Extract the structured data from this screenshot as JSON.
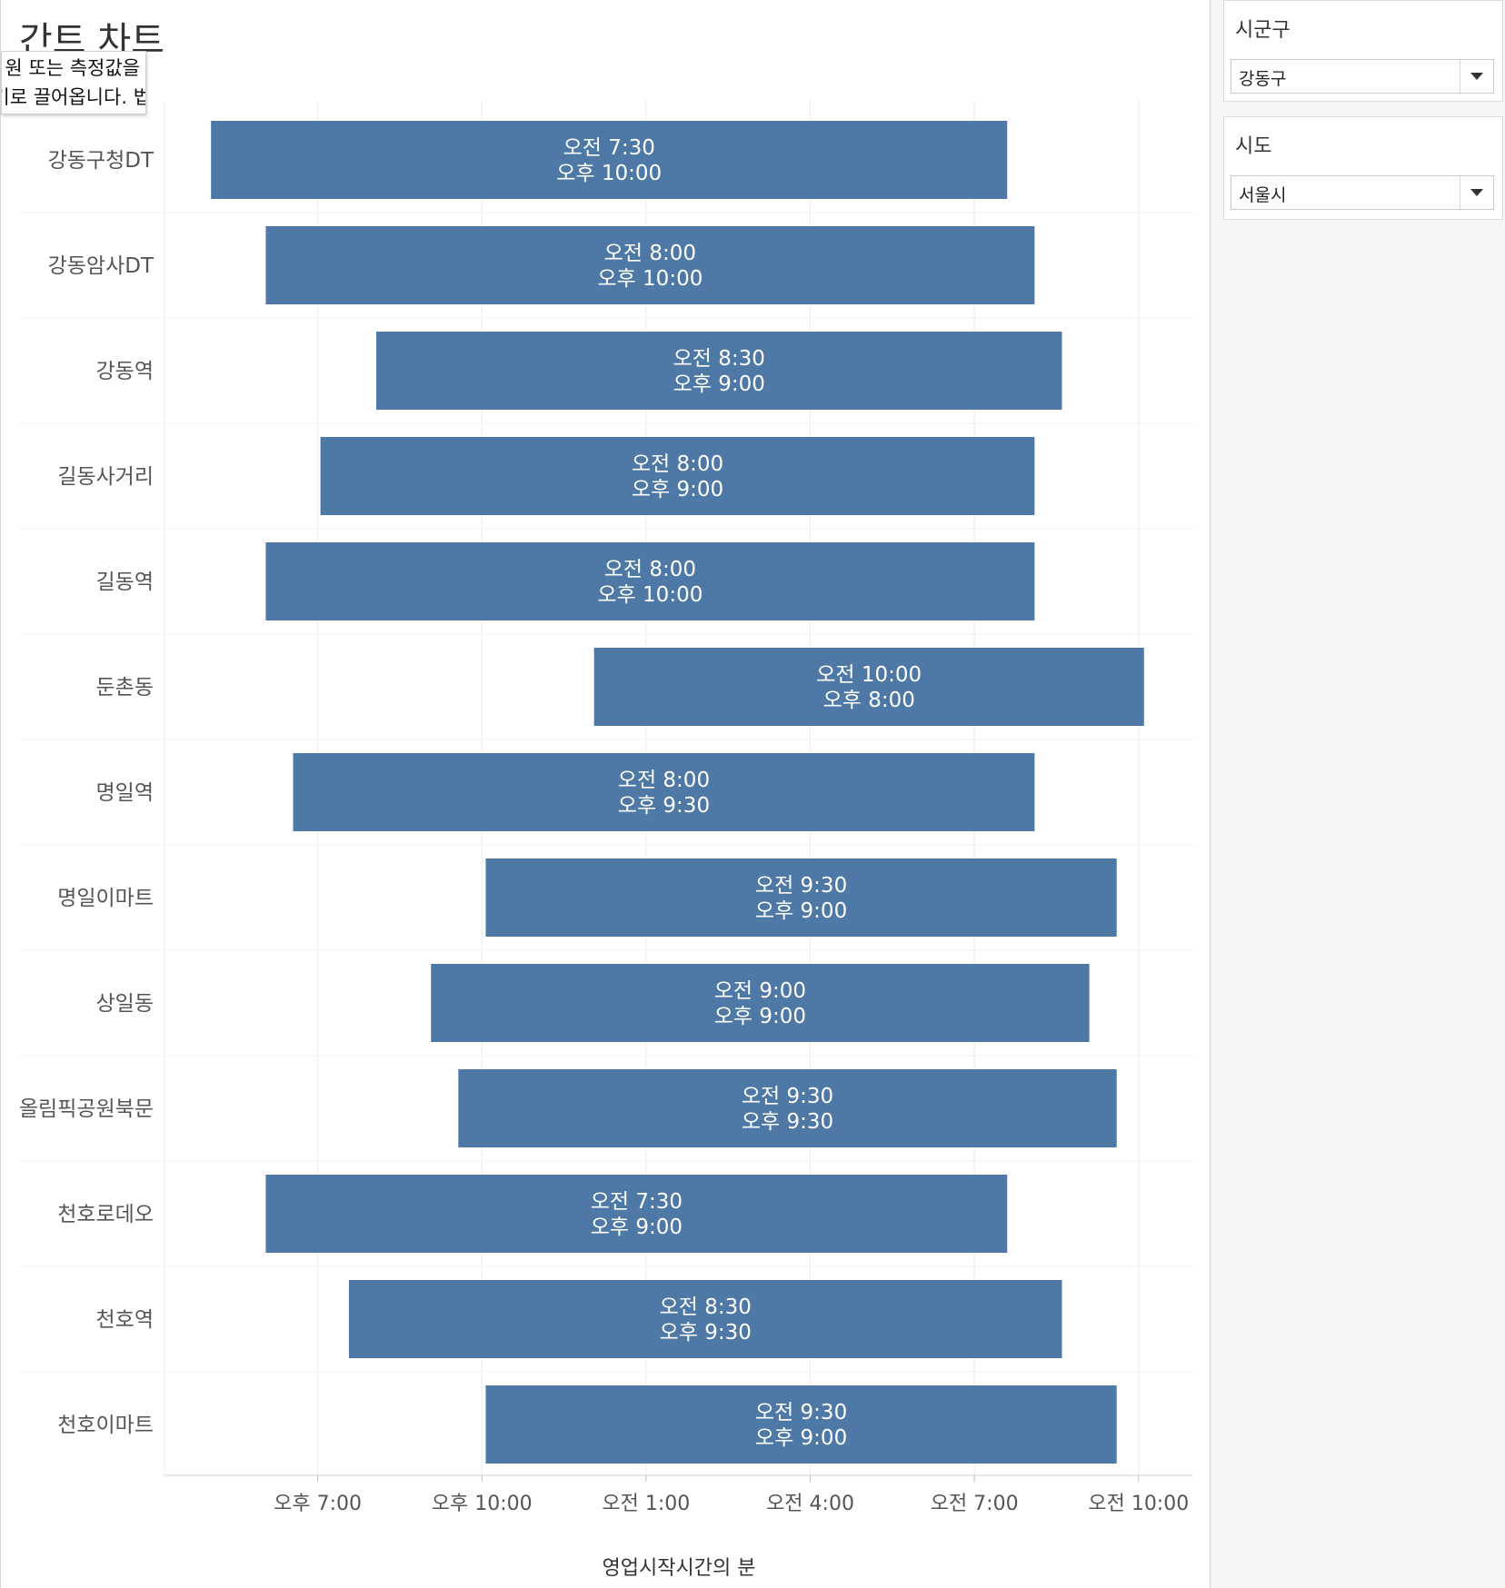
{
  "sheet": {
    "title": "간트 차트",
    "hint_line1": "원 또는 측정값을",
    "hint_line2": "기로 끌어옵니다. 법"
  },
  "filters": [
    {
      "title": "시군구",
      "value": "강동구"
    },
    {
      "title": "시도",
      "value": "서울시"
    }
  ],
  "colors": {
    "bar": "#4e79a7",
    "grid": "#ececec",
    "axis": "#d0d0d0"
  },
  "chart_data": {
    "type": "bar",
    "orientation": "horizontal-gantt",
    "xlabel": "영업시작시간의 분",
    "x_ticks": [
      "오후 7:00",
      "오후 10:00",
      "오전 1:00",
      "오전 4:00",
      "오전 7:00",
      "오전 10:00"
    ],
    "x_tick_hours": [
      19,
      22,
      25,
      28,
      31,
      34
    ],
    "xlim_hours": [
      16.2,
      35.0
    ],
    "rows": [
      {
        "name": "강동구청DT",
        "start_hour": 17.05,
        "end_hour": 31.6,
        "open": "오전 7:30",
        "close": "오후 10:00"
      },
      {
        "name": "강동암사DT",
        "start_hour": 18.05,
        "end_hour": 32.1,
        "open": "오전 8:00",
        "close": "오후 10:00"
      },
      {
        "name": "강동역",
        "start_hour": 20.07,
        "end_hour": 32.6,
        "open": "오전 8:30",
        "close": "오후 9:00"
      },
      {
        "name": "길동사거리",
        "start_hour": 19.05,
        "end_hour": 32.1,
        "open": "오전 8:00",
        "close": "오후 9:00"
      },
      {
        "name": "길동역",
        "start_hour": 18.05,
        "end_hour": 32.1,
        "open": "오전 8:00",
        "close": "오후 10:00"
      },
      {
        "name": "둔촌동",
        "start_hour": 24.05,
        "end_hour": 34.1,
        "open": "오전 10:00",
        "close": "오후 8:00"
      },
      {
        "name": "명일역",
        "start_hour": 18.55,
        "end_hour": 32.1,
        "open": "오전 8:00",
        "close": "오후 9:30"
      },
      {
        "name": "명일이마트",
        "start_hour": 22.07,
        "end_hour": 33.6,
        "open": "오전 9:30",
        "close": "오후 9:00"
      },
      {
        "name": "상일동",
        "start_hour": 21.07,
        "end_hour": 33.1,
        "open": "오전 9:00",
        "close": "오후 9:00"
      },
      {
        "name": "올림픽공원북문",
        "start_hour": 21.57,
        "end_hour": 33.6,
        "open": "오전 9:30",
        "close": "오후 9:30"
      },
      {
        "name": "천호로데오",
        "start_hour": 18.05,
        "end_hour": 31.6,
        "open": "오전 7:30",
        "close": "오후 9:00"
      },
      {
        "name": "천호역",
        "start_hour": 19.57,
        "end_hour": 32.6,
        "open": "오전 8:30",
        "close": "오후 9:30"
      },
      {
        "name": "천호이마트",
        "start_hour": 22.07,
        "end_hour": 33.6,
        "open": "오전 9:30",
        "close": "오후 9:00"
      }
    ]
  }
}
